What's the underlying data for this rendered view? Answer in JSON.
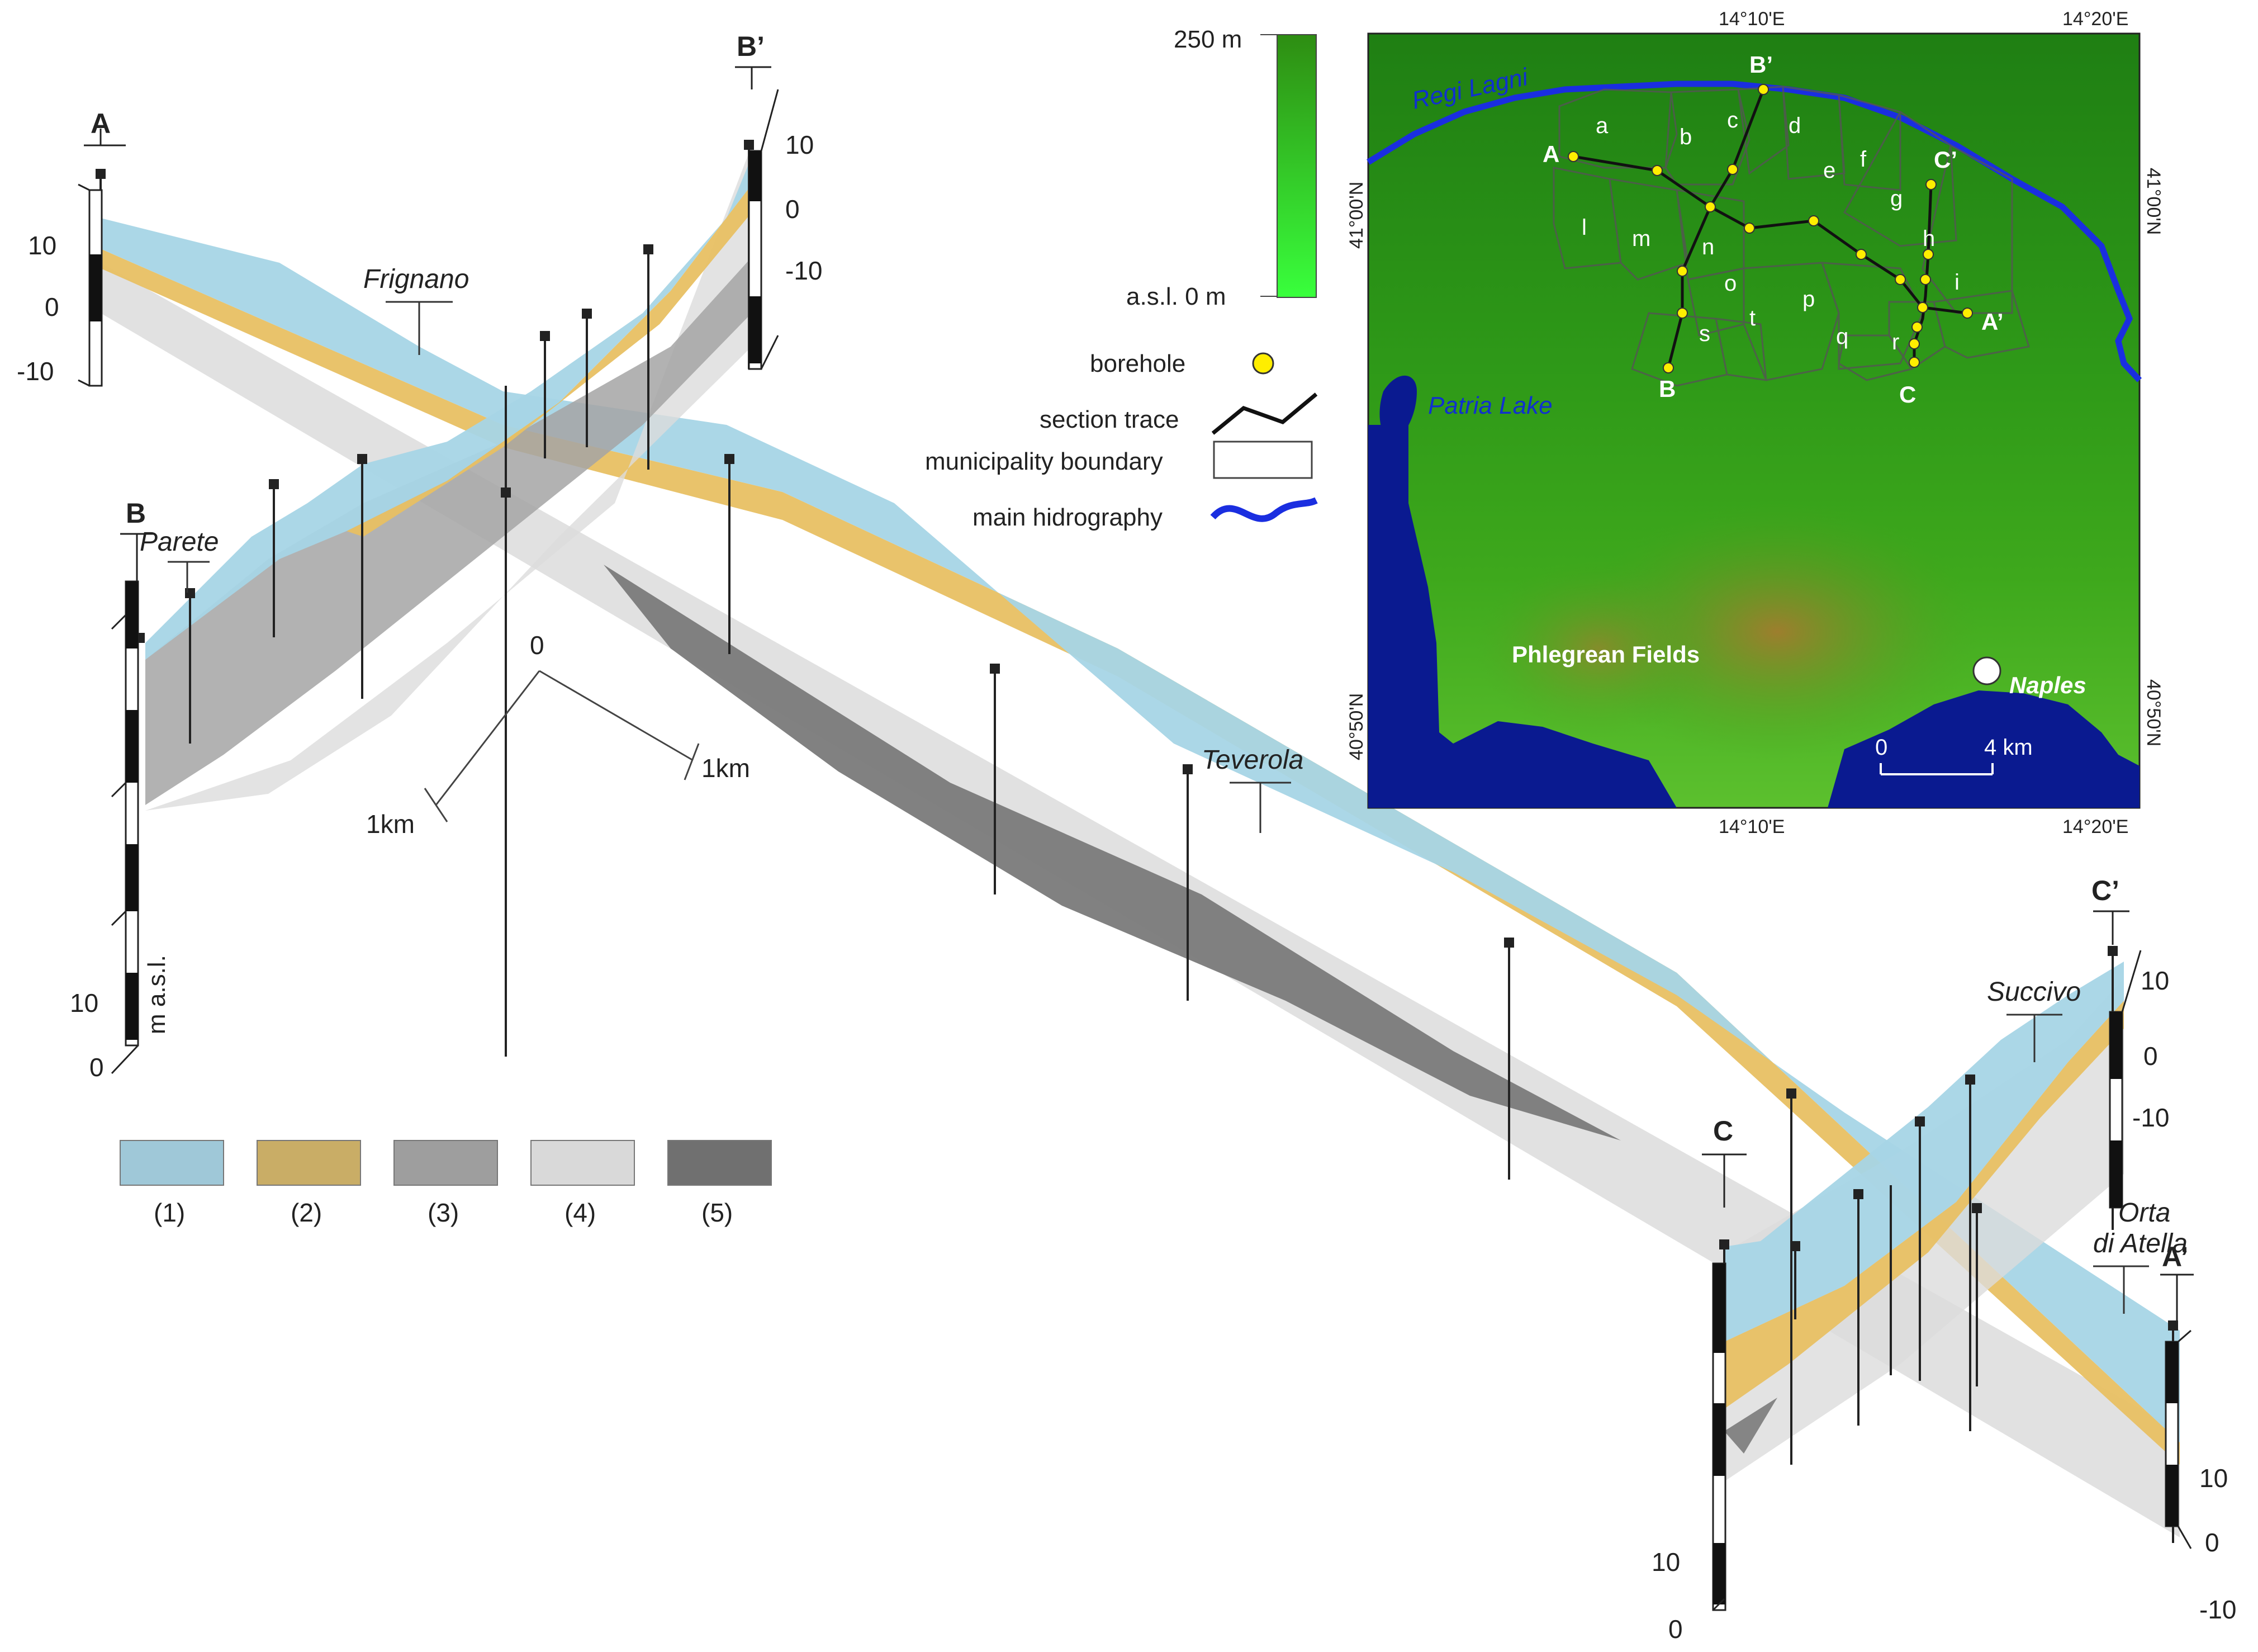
{
  "sections": {
    "A": "A",
    "A_prime": "A’",
    "B": "B",
    "B_prime": "B’",
    "C": "C",
    "C_prime": "C’"
  },
  "towns": {
    "frignano": "Frignano",
    "parete": "Parete",
    "teverola": "Teverola",
    "succivo": "Succivo",
    "orta_line1": "Orta",
    "orta_line2": "di Atella"
  },
  "scale_bars": {
    "zero": "0",
    "one_km_x": "1km",
    "one_km_y": "1km"
  },
  "elevation_ticks": {
    "A": [
      "10",
      "0",
      "-10"
    ],
    "B_prime": [
      "10",
      "0",
      "-10"
    ],
    "B": [
      "10",
      "0"
    ],
    "B_unit": "m a.s.l.",
    "C": [
      "10",
      "0"
    ],
    "C_prime": [
      "10",
      "0",
      "-10"
    ],
    "A_prime": [
      "10",
      "0",
      "-10"
    ]
  },
  "legend": [
    {
      "label": "(1)",
      "color": "#9fc8d8"
    },
    {
      "label": "(2)",
      "color": "#c9ad66"
    },
    {
      "label": "(3)",
      "color": "#9e9e9e"
    },
    {
      "label": "(4)",
      "color": "#d9d9d9"
    },
    {
      "label": "(5)",
      "color": "#707070"
    }
  ],
  "map_legend": {
    "scale_top": "250 m",
    "scale_bottom": "a.s.l. 0 m",
    "borehole": "borehole",
    "section_trace": "section trace",
    "municipality_boundary": "municipality boundary",
    "main_hidrography": "main hidrography"
  },
  "map": {
    "coords": {
      "top_left": "14°10'E",
      "top_right": "14°20'E",
      "bottom_left": "14°10'E",
      "bottom_right": "14°20'E",
      "left_upper": "41°00'N",
      "left_lower": "40°50'N",
      "right_upper": "41°00'N",
      "right_lower": "40°50'N"
    },
    "river": "Regi Lagni",
    "lake": "Patria Lake",
    "phlegrean": "Phlegrean  Fields",
    "naples": "Naples",
    "scale_zero": "0",
    "scale_km": "4 km",
    "municipalities": [
      "a",
      "b",
      "c",
      "d",
      "e",
      "f",
      "g",
      "h",
      "i",
      "l",
      "m",
      "n",
      "o",
      "p",
      "q",
      "r",
      "s",
      "t"
    ],
    "points": {
      "A": "A",
      "A_prime": "A’",
      "B": "B",
      "B_prime": "B’",
      "C": "C",
      "C_prime": "C’"
    }
  },
  "colors": {
    "unit1": "#a6d5e6",
    "unit2": "#e8c063",
    "unit3": "#a4a4a4",
    "unit4": "#dcdcdc",
    "unit5": "#7a7a7a",
    "river": "#1a2ee0",
    "borehole": "#ffee00",
    "sea": "#0a1a90"
  }
}
